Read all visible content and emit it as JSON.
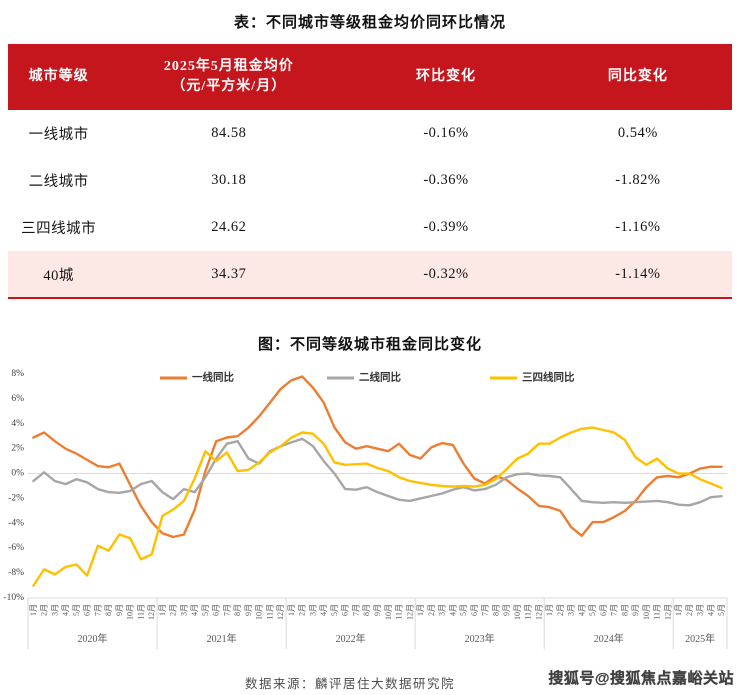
{
  "theme": {
    "header_red": "#c5161d",
    "highlight_pink": "#fce9e6",
    "grid_gray": "#d9d9d9",
    "axis_text": "#595959"
  },
  "table": {
    "title": "表：不同城市等级租金均价同环比情况",
    "columns": {
      "tier": "城市等级",
      "price_line1": "2025年5月租金均价",
      "price_line2": "（元/平方米/月）",
      "mom": "环比变化",
      "yoy": "同比变化"
    },
    "rows": [
      {
        "tier": "一线城市",
        "price": "84.58",
        "mom": "-0.16%",
        "yoy": "0.54%",
        "highlight": false
      },
      {
        "tier": "二线城市",
        "price": "30.18",
        "mom": "-0.36%",
        "yoy": "-1.82%",
        "highlight": false
      },
      {
        "tier": "三四线城市",
        "price": "24.62",
        "mom": "-0.39%",
        "yoy": "-1.16%",
        "highlight": false
      },
      {
        "tier": "40城",
        "price": "34.37",
        "mom": "-0.32%",
        "yoy": "-1.14%",
        "highlight": true
      }
    ]
  },
  "chart_data": {
    "type": "line",
    "title": "图：不同等级城市租金同比变化",
    "ylabel": "",
    "xlabel": "",
    "ylim": [
      -10,
      8
    ],
    "ytick_step": 2,
    "ytick_suffix": "%",
    "grid": "zero-line-only",
    "legend_position": "top-inside",
    "years": [
      {
        "label": "2020年",
        "months": 12
      },
      {
        "label": "2021年",
        "months": 12
      },
      {
        "label": "2022年",
        "months": 12
      },
      {
        "label": "2023年",
        "months": 12
      },
      {
        "label": "2024年",
        "months": 12
      },
      {
        "label": "2025年",
        "months": 5
      }
    ],
    "month_label_suffix": "月",
    "series": [
      {
        "name": "一线同比",
        "color": "#ED7D31",
        "values": [
          2.9,
          3.3,
          2.6,
          2.0,
          1.6,
          1.1,
          0.6,
          0.5,
          0.8,
          -0.9,
          -2.6,
          -3.9,
          -4.8,
          -5.1,
          -4.9,
          -2.9,
          0.2,
          2.6,
          2.9,
          3.0,
          3.7,
          4.6,
          5.7,
          6.8,
          7.5,
          7.8,
          6.9,
          5.7,
          3.7,
          2.5,
          2.0,
          2.2,
          2.0,
          1.8,
          2.4,
          1.5,
          1.2,
          2.1,
          2.45,
          2.3,
          0.8,
          -0.4,
          -0.8,
          -0.2,
          -0.5,
          -1.2,
          -1.8,
          -2.6,
          -2.7,
          -3.0,
          -4.3,
          -5.0,
          -3.9,
          -3.9,
          -3.5,
          -3.0,
          -2.2,
          -1.1,
          -0.3,
          -0.2,
          -0.3,
          0.0,
          0.4,
          0.55,
          0.54
        ]
      },
      {
        "name": "二线同比",
        "color": "#A6A6A6",
        "values": [
          -0.6,
          0.1,
          -0.6,
          -0.85,
          -0.45,
          -0.7,
          -1.25,
          -1.5,
          -1.55,
          -1.4,
          -0.85,
          -0.6,
          -1.5,
          -2.05,
          -1.25,
          -1.5,
          -0.3,
          1.2,
          2.4,
          2.6,
          1.2,
          0.8,
          1.8,
          2.2,
          2.5,
          2.8,
          2.2,
          1.0,
          0.0,
          -1.25,
          -1.3,
          -1.1,
          -1.5,
          -1.8,
          -2.1,
          -2.2,
          -2.0,
          -1.8,
          -1.6,
          -1.3,
          -1.1,
          -1.35,
          -1.25,
          -0.9,
          -0.3,
          -0.05,
          0.0,
          -0.15,
          -0.2,
          -0.3,
          -1.25,
          -2.2,
          -2.3,
          -2.35,
          -2.3,
          -2.35,
          -2.3,
          -2.25,
          -2.2,
          -2.3,
          -2.5,
          -2.55,
          -2.3,
          -1.9,
          -1.82
        ]
      },
      {
        "name": "三四线同比",
        "color": "#FFC000",
        "values": [
          -9.0,
          -7.7,
          -8.1,
          -7.5,
          -7.3,
          -8.2,
          -5.8,
          -6.2,
          -4.9,
          -5.2,
          -6.9,
          -6.5,
          -3.4,
          -2.9,
          -2.2,
          -0.4,
          1.8,
          1.0,
          1.7,
          0.2,
          0.3,
          0.9,
          1.7,
          2.2,
          2.9,
          3.3,
          3.2,
          2.4,
          0.9,
          0.7,
          0.75,
          0.8,
          0.45,
          0.2,
          -0.3,
          -0.6,
          -0.75,
          -0.9,
          -1.0,
          -1.05,
          -1.0,
          -1.05,
          -0.9,
          -0.45,
          0.35,
          1.2,
          1.6,
          2.4,
          2.4,
          2.9,
          3.3,
          3.6,
          3.7,
          3.5,
          3.3,
          2.7,
          1.3,
          0.7,
          1.2,
          0.4,
          0.0,
          0.0,
          -0.45,
          -0.8,
          -1.16
        ]
      }
    ]
  },
  "footer": {
    "source": "数据来源：麟评居住大数据研究院",
    "watermark": "搜狐号@搜狐焦点嘉峪关站"
  }
}
